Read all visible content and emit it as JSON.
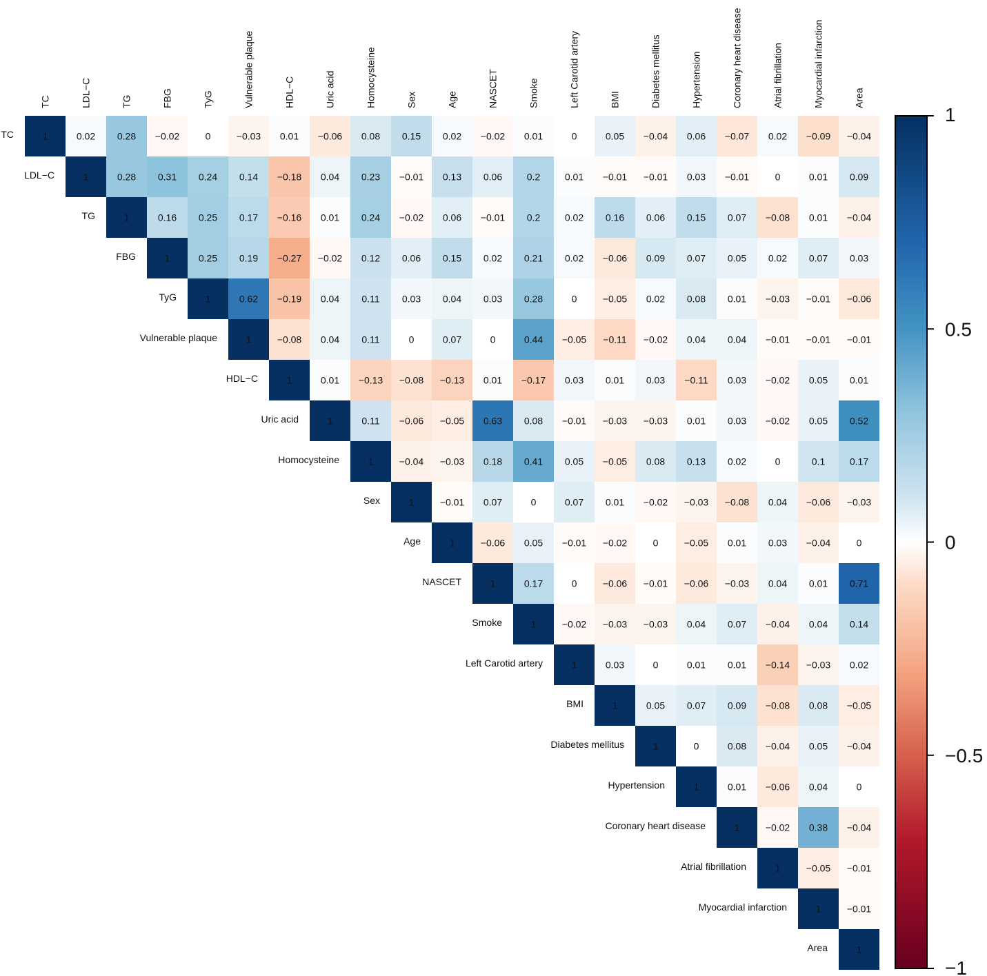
{
  "chart_data": {
    "type": "heatmap",
    "subtype": "correlation-upper-triangle",
    "title": "",
    "variables": [
      "TC",
      "LDL−C",
      "TG",
      "FBG",
      "TyG",
      "Vulnerable plaque",
      "HDL−C",
      "Uric acid",
      "Homocysteine",
      "Sex",
      "Age",
      "NASCET",
      "Smoke",
      "Left Carotid artery",
      "BMI",
      "Diabetes mellitus",
      "Hypertension",
      "Coronary heart disease",
      "Atrial fibrillation",
      "Myocardial infarction",
      "Area"
    ],
    "matrix_upper": [
      [
        1,
        0.02,
        0.28,
        -0.02,
        0,
        -0.03,
        0.01,
        -0.06,
        0.08,
        0.15,
        0.02,
        -0.02,
        0.01,
        0,
        0.05,
        -0.04,
        0.06,
        -0.07,
        0.02,
        -0.09,
        -0.04
      ],
      [
        1,
        0.28,
        0.31,
        0.24,
        0.14,
        -0.18,
        0.04,
        0.23,
        -0.01,
        0.13,
        0.06,
        0.2,
        0.01,
        -0.01,
        -0.01,
        0.03,
        -0.01,
        0,
        0.01,
        0.09
      ],
      [
        1,
        0.16,
        0.25,
        0.17,
        -0.16,
        0.01,
        0.24,
        -0.02,
        0.06,
        -0.01,
        0.2,
        0.02,
        0.16,
        0.06,
        0.15,
        0.07,
        -0.08,
        0.01,
        -0.04
      ],
      [
        1,
        0.25,
        0.19,
        -0.27,
        -0.02,
        0.12,
        0.06,
        0.15,
        0.02,
        0.21,
        0.02,
        -0.06,
        0.09,
        0.07,
        0.05,
        0.02,
        0.07,
        0.03
      ],
      [
        1,
        0.62,
        -0.19,
        0.04,
        0.11,
        0.03,
        0.04,
        0.03,
        0.28,
        0,
        -0.05,
        0.02,
        0.08,
        0.01,
        -0.03,
        -0.01,
        -0.06
      ],
      [
        1,
        -0.08,
        0.04,
        0.11,
        0,
        0.07,
        0,
        0.44,
        -0.05,
        -0.11,
        -0.02,
        0.04,
        0.04,
        -0.01,
        -0.01,
        -0.01
      ],
      [
        1,
        0.01,
        -0.13,
        -0.08,
        -0.13,
        0.01,
        -0.17,
        0.03,
        0.01,
        0.03,
        -0.11,
        0.03,
        -0.02,
        0.05,
        0.01
      ],
      [
        1,
        0.11,
        -0.06,
        -0.05,
        0.63,
        0.08,
        -0.01,
        -0.03,
        -0.03,
        0.01,
        0.03,
        -0.02,
        0.05,
        0.52
      ],
      [
        1,
        -0.04,
        -0.03,
        0.18,
        0.41,
        0.05,
        -0.05,
        0.08,
        0.13,
        0.02,
        0,
        0.1,
        0.17
      ],
      [
        1,
        -0.01,
        0.07,
        0,
        0.07,
        0.01,
        -0.02,
        -0.03,
        -0.08,
        0.04,
        -0.06,
        -0.03
      ],
      [
        1,
        -0.06,
        0.05,
        -0.01,
        -0.02,
        0,
        -0.05,
        0.01,
        0.03,
        -0.04,
        0
      ],
      [
        1,
        0.17,
        0,
        -0.06,
        -0.01,
        -0.06,
        -0.03,
        0.04,
        0.01,
        0.71
      ],
      [
        1,
        -0.02,
        -0.03,
        -0.03,
        0.04,
        0.07,
        -0.04,
        0.04,
        0.14
      ],
      [
        1,
        0.03,
        0,
        0.01,
        0.01,
        -0.14,
        -0.03,
        0.02
      ],
      [
        1,
        0.05,
        0.07,
        0.09,
        -0.08,
        0.08,
        -0.05
      ],
      [
        1,
        0,
        0.08,
        -0.04,
        0.05,
        -0.04
      ],
      [
        1,
        0.01,
        -0.06,
        0.04,
        0
      ],
      [
        1,
        -0.02,
        0.38,
        -0.04
      ],
      [
        1,
        -0.05,
        -0.01
      ],
      [
        1,
        -0.01
      ],
      [
        1
      ]
    ],
    "colorbar": {
      "range": [
        -1,
        1
      ],
      "ticks": [
        1,
        0.5,
        0,
        -0.5,
        -1
      ],
      "tick_labels": [
        "1",
        "0.5",
        "0",
        "−0.5",
        "−1"
      ],
      "colors": {
        "neg_dark": "#67001f",
        "neg_mid": "#f4a582",
        "zero": "#ffffff",
        "pos_mid": "#92c5de",
        "pos_dark": "#053061"
      }
    },
    "legend_position": "right"
  }
}
